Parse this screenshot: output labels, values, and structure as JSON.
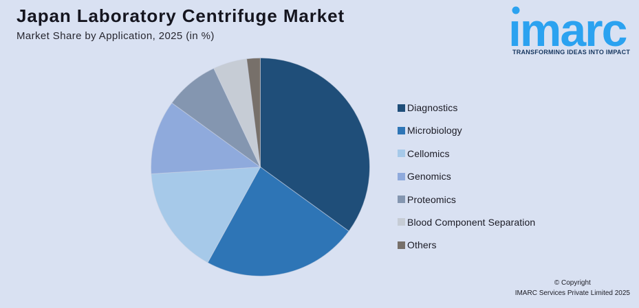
{
  "header": {
    "title": "Japan Laboratory Centrifuge Market",
    "subtitle": "Market Share by Application, 2025 (in %)"
  },
  "logo": {
    "brand": "imarc",
    "tagline": "TRANSFORMING IDEAS INTO IMPACT",
    "brand_color": "#2ba2f0",
    "tagline_color": "#16365f"
  },
  "chart_data": {
    "type": "pie",
    "title": "Japan Laboratory Centrifuge Market",
    "subtitle": "Market Share by Application, 2025 (in %)",
    "unit": "%",
    "legend_position": "right",
    "start_angle_deg": 0,
    "direction": "clockwise",
    "background": "#d9e1f2",
    "segments": [
      {
        "label": "Diagnostics",
        "value": 35,
        "color": "#1f4e79"
      },
      {
        "label": "Microbiology",
        "value": 23,
        "color": "#2e75b6"
      },
      {
        "label": "Cellomics",
        "value": 16,
        "color": "#a6c9e9"
      },
      {
        "label": "Genomics",
        "value": 11,
        "color": "#8faadc"
      },
      {
        "label": "Proteomics",
        "value": 8,
        "color": "#8496b0"
      },
      {
        "label": "Blood Component Separation",
        "value": 5,
        "color": "#c6ccd5"
      },
      {
        "label": "Others",
        "value": 2,
        "color": "#77706a"
      }
    ]
  },
  "footer": {
    "copyright_line1": "© Copyright",
    "copyright_line2": "IMARC Services Private Limited 2025"
  }
}
